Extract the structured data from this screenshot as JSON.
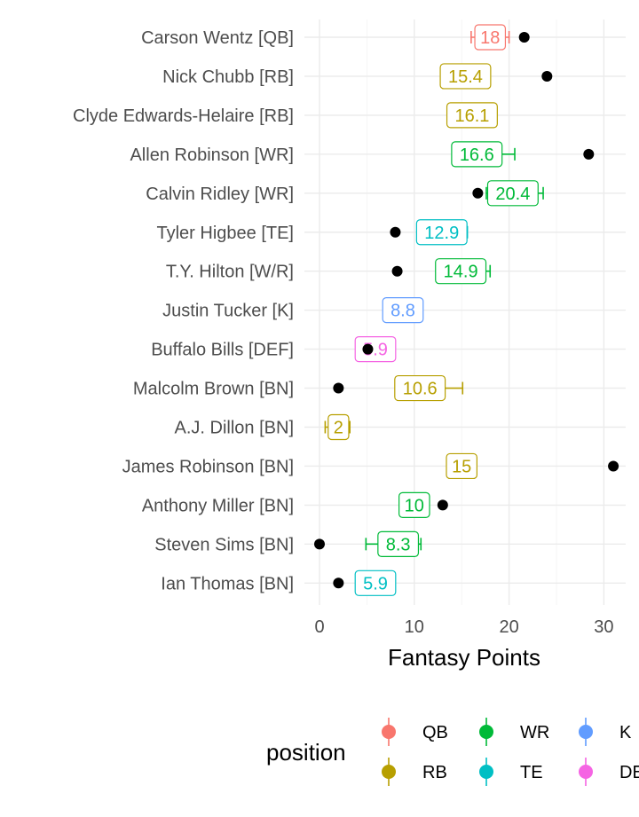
{
  "chart_data": {
    "type": "scatter",
    "xlabel": "Fantasy Points",
    "ylabel": "",
    "xlim": [
      -1.5,
      32.5
    ],
    "xticks": [
      0,
      10,
      20,
      30
    ],
    "grid": true,
    "legend": {
      "title": "position",
      "placement": "bottom",
      "entries": [
        {
          "label": "QB",
          "color": "#F8766D"
        },
        {
          "label": "RB",
          "color": "#B79F00"
        },
        {
          "label": "WR",
          "color": "#00BA38"
        },
        {
          "label": "TE",
          "color": "#00BFC4"
        },
        {
          "label": "K",
          "color": "#619CFF"
        },
        {
          "label": "DEF",
          "color": "#F564E3"
        }
      ]
    },
    "players": [
      {
        "name": "Carson Wentz [QB]",
        "position": "QB",
        "projected": 18,
        "label": "18",
        "low": 16,
        "high": 20,
        "actual": 21.6
      },
      {
        "name": "Nick Chubb [RB]",
        "position": "RB",
        "projected": 15.4,
        "label": "15.4",
        "low": 14.2,
        "high": 16.8,
        "actual": 24
      },
      {
        "name": "Clyde Edwards-Helaire [RB]",
        "position": "RB",
        "projected": 16.1,
        "label": "16.1",
        "low": 15.2,
        "high": 17.0,
        "actual": null
      },
      {
        "name": "Allen Robinson [WR]",
        "position": "WR",
        "projected": 16.6,
        "label": "16.6",
        "low": 14.6,
        "high": 20.6,
        "actual": 28.4
      },
      {
        "name": "Calvin Ridley [WR]",
        "position": "WR",
        "projected": 20.4,
        "label": "20.4",
        "low": 17.6,
        "high": 23.6,
        "actual": 16.7
      },
      {
        "name": "Tyler Higbee [TE]",
        "position": "TE",
        "projected": 12.9,
        "label": "12.9",
        "low": 11.2,
        "high": 15.6,
        "actual": 8
      },
      {
        "name": "T.Y. Hilton [W/R]",
        "position": "WR",
        "projected": 14.9,
        "label": "14.9",
        "low": 13.0,
        "high": 18.0,
        "actual": 8.2
      },
      {
        "name": "Justin Tucker [K]",
        "position": "K",
        "projected": 8.8,
        "label": "8.8",
        "low": 7.8,
        "high": 9.8,
        "actual": null
      },
      {
        "name": "Buffalo Bills [DEF]",
        "position": "DEF",
        "projected": 5.9,
        "label": "5.9",
        "low": 4.2,
        "high": 7.6,
        "actual": 5.1
      },
      {
        "name": "Malcolm Brown [BN]",
        "position": "RB",
        "projected": 10.6,
        "label": "10.6",
        "low": 9.0,
        "high": 15.1,
        "actual": 2
      },
      {
        "name": "A.J. Dillon [BN]",
        "position": "RB",
        "projected": 2,
        "label": "2",
        "low": 0.6,
        "high": 3.2,
        "actual": null
      },
      {
        "name": "James Robinson [BN]",
        "position": "RB",
        "projected": 15,
        "label": "15",
        "low": 14.0,
        "high": 16.0,
        "actual": 31
      },
      {
        "name": "Anthony Miller [BN]",
        "position": "WR",
        "projected": 10,
        "label": "10",
        "low": 8.8,
        "high": 11.4,
        "actual": 13
      },
      {
        "name": "Steven Sims [BN]",
        "position": "WR",
        "projected": 8.3,
        "label": "8.3",
        "low": 4.9,
        "high": 10.7,
        "actual": 0
      },
      {
        "name": "Ian Thomas [BN]",
        "position": "TE",
        "projected": 5.9,
        "label": "5.9",
        "low": 4.4,
        "high": 7.4,
        "actual": 2
      }
    ]
  }
}
